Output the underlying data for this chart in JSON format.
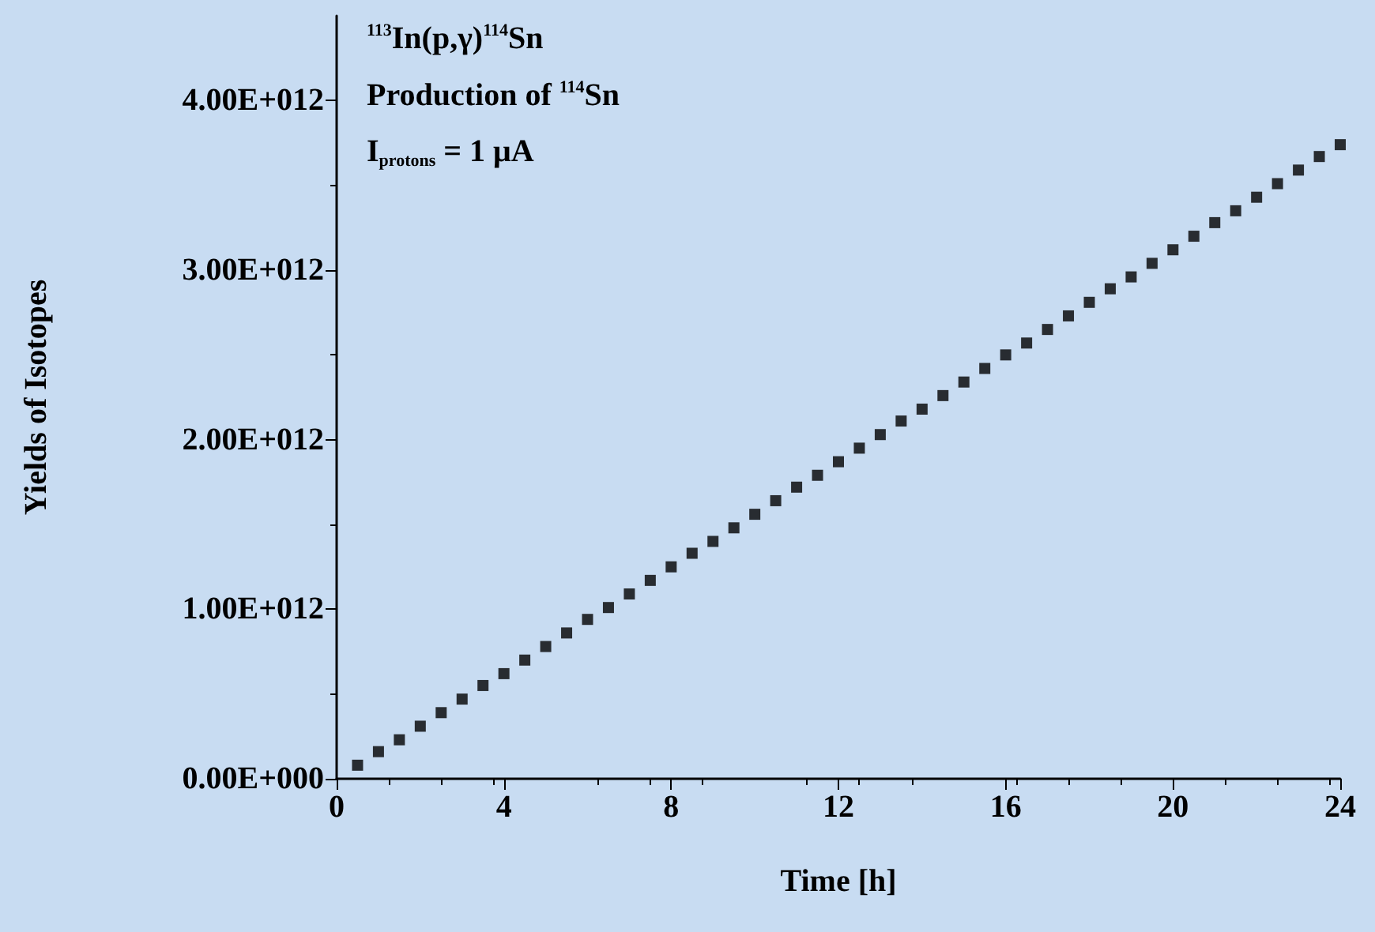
{
  "chart_data": {
    "type": "scatter",
    "xlabel": "Time [h]",
    "ylabel": "Yields of Isotopes",
    "annotations": [
      "$^{113}$In(p,γ)$^{114}$Sn",
      "Production of $^{114}$Sn",
      "I$_{protons}$ = 1 μA"
    ],
    "x": [
      0.5,
      1,
      1.5,
      2,
      2.5,
      3,
      3.5,
      4,
      4.5,
      5,
      5.5,
      6,
      6.5,
      7,
      7.5,
      8,
      8.5,
      9,
      9.5,
      10,
      10.5,
      11,
      11.5,
      12,
      12.5,
      13,
      13.5,
      14,
      14.5,
      15,
      15.5,
      16,
      16.5,
      17,
      17.5,
      18,
      18.5,
      19,
      19.5,
      20,
      20.5,
      21,
      21.5,
      22,
      22.5,
      23,
      23.5,
      24
    ],
    "series": [
      {
        "color": "#000000",
        "values": [
          80000000000.0,
          160000000000.0,
          230000000000.0,
          310000000000.0,
          390000000000.0,
          470000000000.0,
          550000000000.0,
          620000000000.0,
          700000000000.0,
          780000000000.0,
          860000000000.0,
          940000000000.0,
          1010000000000.0,
          1090000000000.0,
          1170000000000.0,
          1250000000000.0,
          1330000000000.0,
          1400000000000.0,
          1480000000000.0,
          1560000000000.0,
          1640000000000.0,
          1720000000000.0,
          1790000000000.0,
          1870000000000.0,
          1950000000000.0,
          2030000000000.0,
          2110000000000.0,
          2180000000000.0,
          2260000000000.0,
          2340000000000.0,
          2420000000000.0,
          2500000000000.0,
          2570000000000.0,
          2650000000000.0,
          2730000000000.0,
          2810000000000.0,
          2890000000000.0,
          2960000000000.0,
          3040000000000.0,
          3120000000000.0,
          3200000000000.0,
          3280000000000.0,
          3350000000000.0,
          3430000000000.0,
          3510000000000.0,
          3590000000000.0,
          3670000000000.0,
          3740000000000.0
        ]
      }
    ],
    "xlim": [
      0,
      24
    ],
    "xticks": [
      0,
      4,
      8,
      12,
      16,
      20,
      24
    ],
    "ylim": [
      0,
      4500000000000.0
    ],
    "yticks": [
      {
        "value": 0,
        "label": "0.00E+000"
      },
      {
        "value": 1000000000000.0,
        "label": "1.00E+012"
      },
      {
        "value": 2000000000000.0,
        "label": "2.00E+012"
      },
      {
        "value": 3000000000000.0,
        "label": "3.00E+012"
      },
      {
        "value": 4000000000000.0,
        "label": "4.00E+012"
      }
    ],
    "grid": false,
    "marker": "square"
  }
}
